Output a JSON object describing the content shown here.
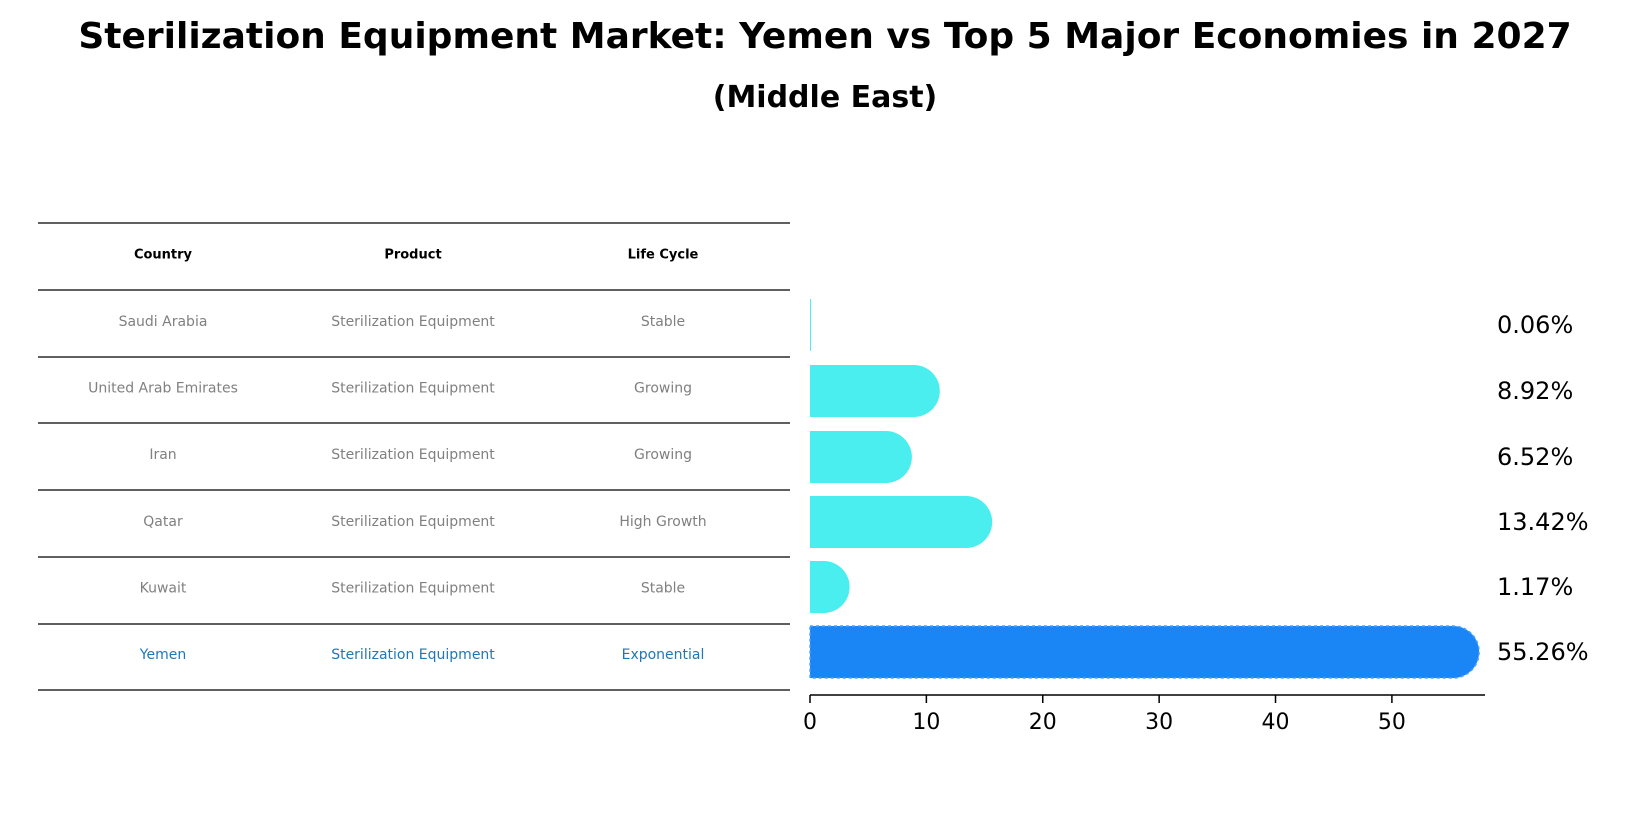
{
  "title": "Sterilization Equipment Market: Yemen vs Top 5 Major Economies in 2027",
  "subtitle": "(Middle East)",
  "colors": {
    "bar": "#4aeeee",
    "highlight_bar": "#1a85f5",
    "highlight_text": "#1f77b4",
    "cell_text": "#808080"
  },
  "table": {
    "headers": [
      "Country",
      "Product",
      "Life Cycle"
    ],
    "rows": [
      [
        "Saudi Arabia",
        "Sterilization Equipment",
        "Stable"
      ],
      [
        "United Arab Emirates",
        "Sterilization Equipment",
        "Growing"
      ],
      [
        "Iran",
        "Sterilization Equipment",
        "Growing"
      ],
      [
        "Qatar",
        "Sterilization Equipment",
        "High Growth"
      ],
      [
        "Kuwait",
        "Sterilization Equipment",
        "Stable"
      ],
      [
        "Yemen",
        "Sterilization Equipment",
        "Exponential"
      ]
    ],
    "highlight_row": 5
  },
  "chart_data": {
    "type": "bar",
    "orientation": "horizontal",
    "title": "Sterilization Equipment Market: Yemen vs Top 5 Major Economies in 2027",
    "subtitle": "(Middle East)",
    "categories": [
      "Saudi Arabia",
      "United Arab Emirates",
      "Iran",
      "Qatar",
      "Kuwait",
      "Yemen"
    ],
    "values": [
      0.06,
      8.92,
      6.52,
      13.42,
      1.17,
      55.26
    ],
    "labels": [
      "0.06%",
      "8.92%",
      "6.52%",
      "13.42%",
      "1.17%",
      "55.26%"
    ],
    "highlight": "Yemen",
    "xlim": [
      0,
      58
    ],
    "xticks": [
      0,
      10,
      20,
      30,
      40,
      50
    ],
    "xlabel": "",
    "ylabel": "",
    "grid": false
  }
}
